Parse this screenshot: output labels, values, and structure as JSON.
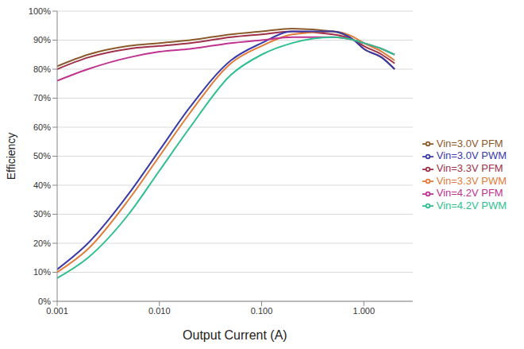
{
  "chart_data": {
    "type": "line",
    "x_label": "Output Current (A)",
    "y_label": "Efficiency",
    "log": "x",
    "grid": true,
    "legend": "right",
    "xlim": [
      0.001,
      3
    ],
    "xticks": [
      {
        "value": 0.001,
        "label": "0.001"
      },
      {
        "value": 0.01,
        "label": "0.010"
      },
      {
        "value": 0.1,
        "label": "0.100"
      },
      {
        "value": 1,
        "label": "1.000"
      }
    ],
    "ylim": [
      0,
      100
    ],
    "yticks": [
      {
        "value": 0,
        "label": "0%"
      },
      {
        "value": 10,
        "label": "10%"
      },
      {
        "value": 20,
        "label": "20%"
      },
      {
        "value": 30,
        "label": "30%"
      },
      {
        "value": 40,
        "label": "40%"
      },
      {
        "value": 50,
        "label": "50%"
      },
      {
        "value": 60,
        "label": "60%"
      },
      {
        "value": 70,
        "label": "70%"
      },
      {
        "value": 80,
        "label": "80%"
      },
      {
        "value": 90,
        "label": "90%"
      },
      {
        "value": 100,
        "label": "100%"
      }
    ],
    "x": [
      0.001,
      0.002,
      0.005,
      0.01,
      0.02,
      0.05,
      0.1,
      0.2,
      0.5,
      0.8,
      1,
      1.5,
      2
    ],
    "series": [
      {
        "name": "Vin=3.3V PFM",
        "color": "#a0304a",
        "values": [
          80,
          84,
          87,
          88,
          89,
          91,
          92,
          93,
          92,
          90,
          88,
          85,
          82
        ]
      },
      {
        "name": "Vin=3.3V PWM",
        "color": "#e07b39",
        "values": [
          10,
          18,
          35,
          50,
          65,
          82,
          88,
          92,
          93,
          91,
          89,
          86,
          83
        ]
      },
      {
        "name": "Vin=3.0V PFM",
        "color": "#8b5a2b",
        "values": [
          81,
          85,
          88,
          89,
          90,
          92,
          93,
          94,
          93,
          90,
          87,
          84,
          80
        ]
      },
      {
        "name": "Vin=3.0V PWM",
        "color": "#3a3aa8",
        "values": [
          11,
          20,
          37,
          52,
          67,
          83,
          89,
          93,
          93,
          90,
          87,
          84,
          80
        ]
      },
      {
        "name": "Vin=4.2V PFM",
        "color": "#c0328f",
        "values": [
          76,
          80,
          84,
          86,
          87,
          89,
          90,
          91,
          91,
          90,
          89,
          87,
          85
        ]
      },
      {
        "name": "Vin=4.2V PWM",
        "color": "#2fbf8f",
        "values": [
          8,
          15,
          30,
          45,
          60,
          78,
          85,
          89,
          91,
          90,
          89,
          87,
          85
        ]
      }
    ]
  }
}
